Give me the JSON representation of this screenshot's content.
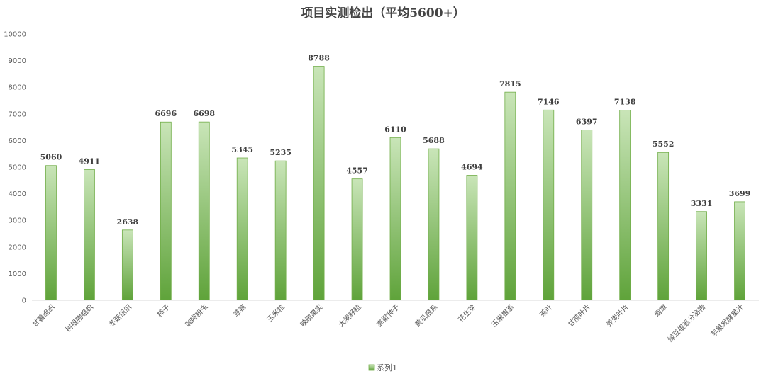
{
  "chart_data": {
    "type": "bar",
    "title": "项目实测检出（平均5600+）",
    "xlabel": "",
    "ylabel": "",
    "ylim": [
      0,
      10000
    ],
    "yticks": [
      0,
      1000,
      2000,
      3000,
      4000,
      5000,
      6000,
      7000,
      8000,
      9000,
      10000
    ],
    "grid": false,
    "legend_position": "bottom",
    "categories": [
      "甘薯组织",
      "树根物组织",
      "冬菇组织",
      "柿子",
      "咖啡粉末",
      "草莓",
      "玉米粒",
      "辣椒果实",
      "大麦籽粒",
      "高粱种子",
      "黄瓜根系",
      "花生芽",
      "玉米根系",
      "茶叶",
      "甘蔗叶片",
      "荞麦叶片",
      "烟草",
      "绿豆根系分泌物",
      "苹果发酵果汁"
    ],
    "series": [
      {
        "name": "系列1",
        "color": "#70ad47",
        "values": [
          5060,
          4911,
          2638,
          6696,
          6698,
          5345,
          5235,
          8788,
          4557,
          6110,
          5688,
          4694,
          7815,
          7146,
          6397,
          7138,
          5552,
          3331,
          3699
        ]
      }
    ]
  }
}
